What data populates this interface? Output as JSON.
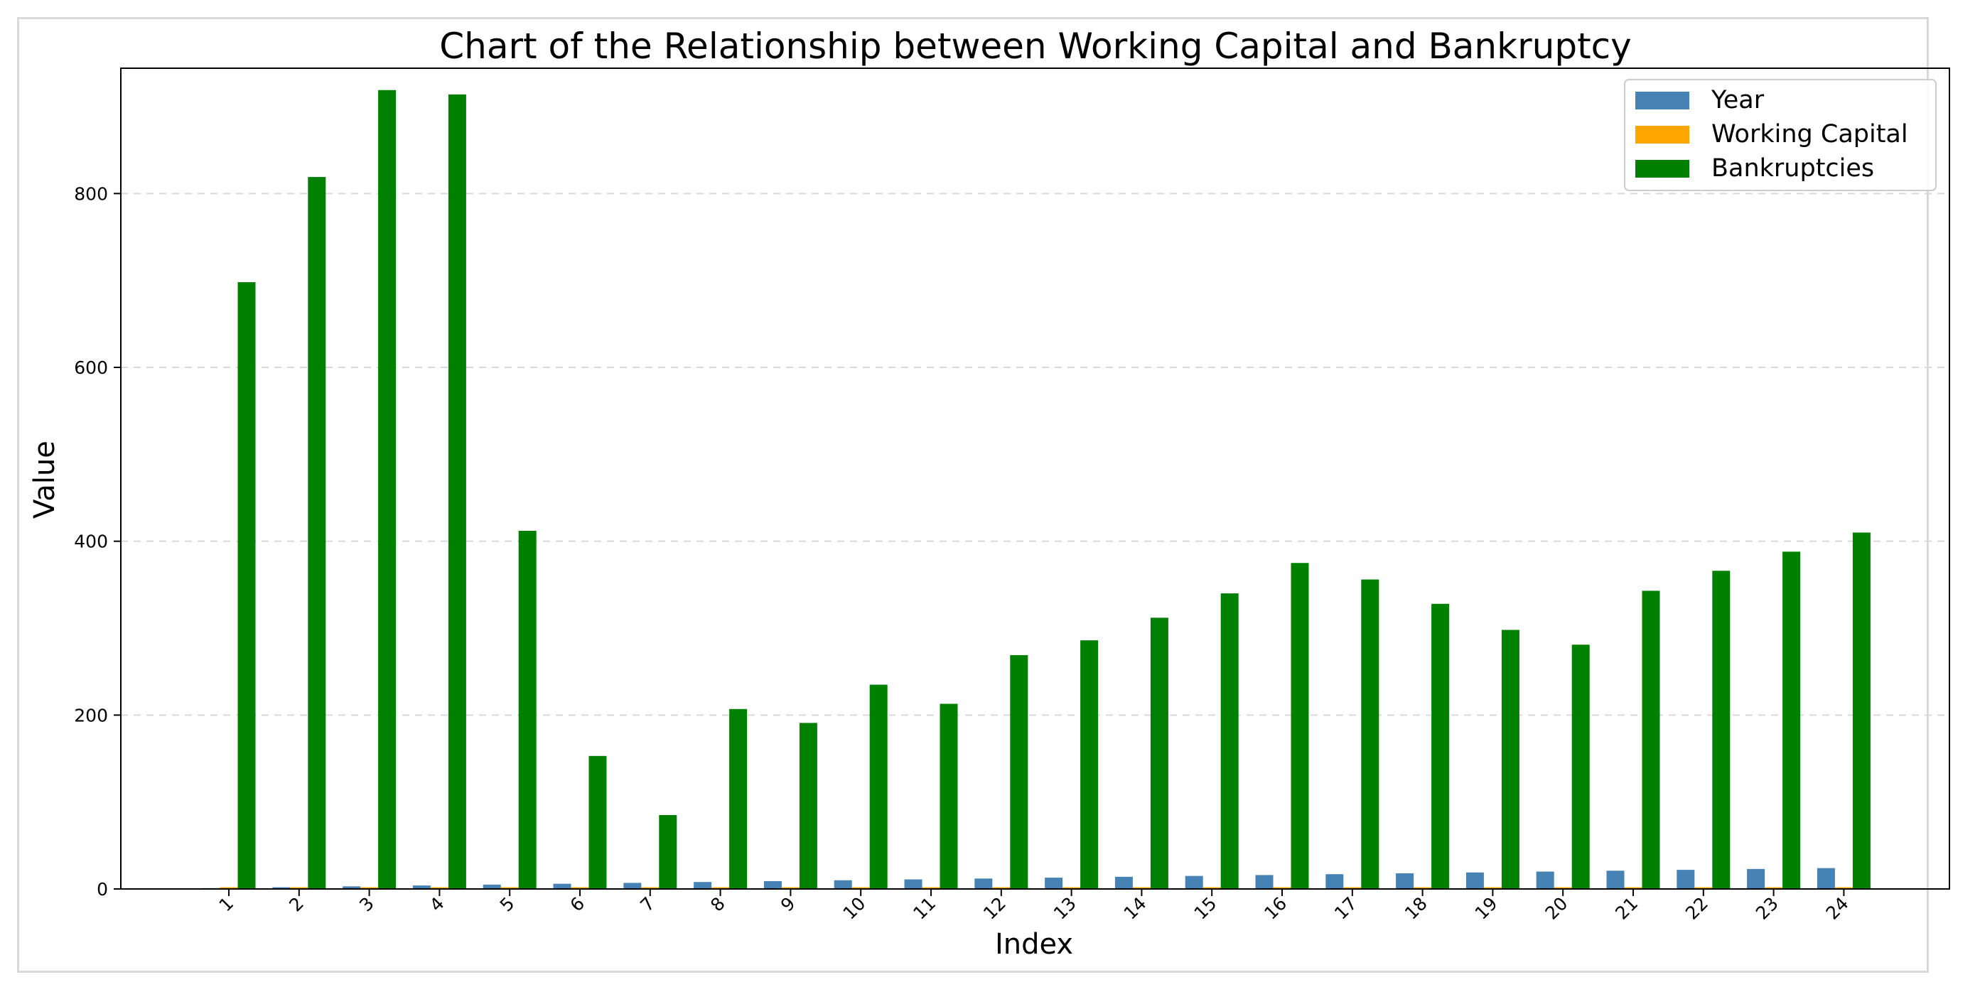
{
  "chart_data": {
    "type": "bar",
    "title": "Chart of the Relationship between Working Capital and Bankruptcy",
    "xlabel": "Index",
    "ylabel": "Value",
    "categories": [
      "1",
      "2",
      "3",
      "4",
      "5",
      "6",
      "7",
      "8",
      "9",
      "10",
      "11",
      "12",
      "13",
      "14",
      "15",
      "16",
      "17",
      "18",
      "19",
      "20",
      "21",
      "22",
      "23",
      "24"
    ],
    "ylim": [
      0,
      960
    ],
    "yticks": [
      0,
      200,
      400,
      600,
      800
    ],
    "grid": "horizontal dashed",
    "legend_position": "top-right",
    "series": [
      {
        "name": "Year",
        "color": "#4682b4",
        "values": [
          1,
          2,
          3,
          4,
          5,
          6,
          7,
          8,
          9,
          10,
          11,
          12,
          13,
          14,
          15,
          16,
          17,
          18,
          19,
          20,
          21,
          22,
          23,
          24
        ]
      },
      {
        "name": "Working Capital",
        "color": "#ffa500",
        "values": [
          2,
          2,
          2,
          2,
          2,
          2,
          2,
          2,
          2,
          2,
          2,
          2,
          2,
          2,
          2,
          2,
          2,
          2,
          2,
          2,
          2,
          2,
          2,
          2
        ]
      },
      {
        "name": "Bankruptcies",
        "color": "#008000",
        "values": [
          698,
          819,
          919,
          914,
          412,
          153,
          85,
          207,
          191,
          235,
          213,
          269,
          286,
          312,
          340,
          375,
          356,
          328,
          298,
          281,
          343,
          366,
          388,
          410
        ]
      }
    ]
  }
}
